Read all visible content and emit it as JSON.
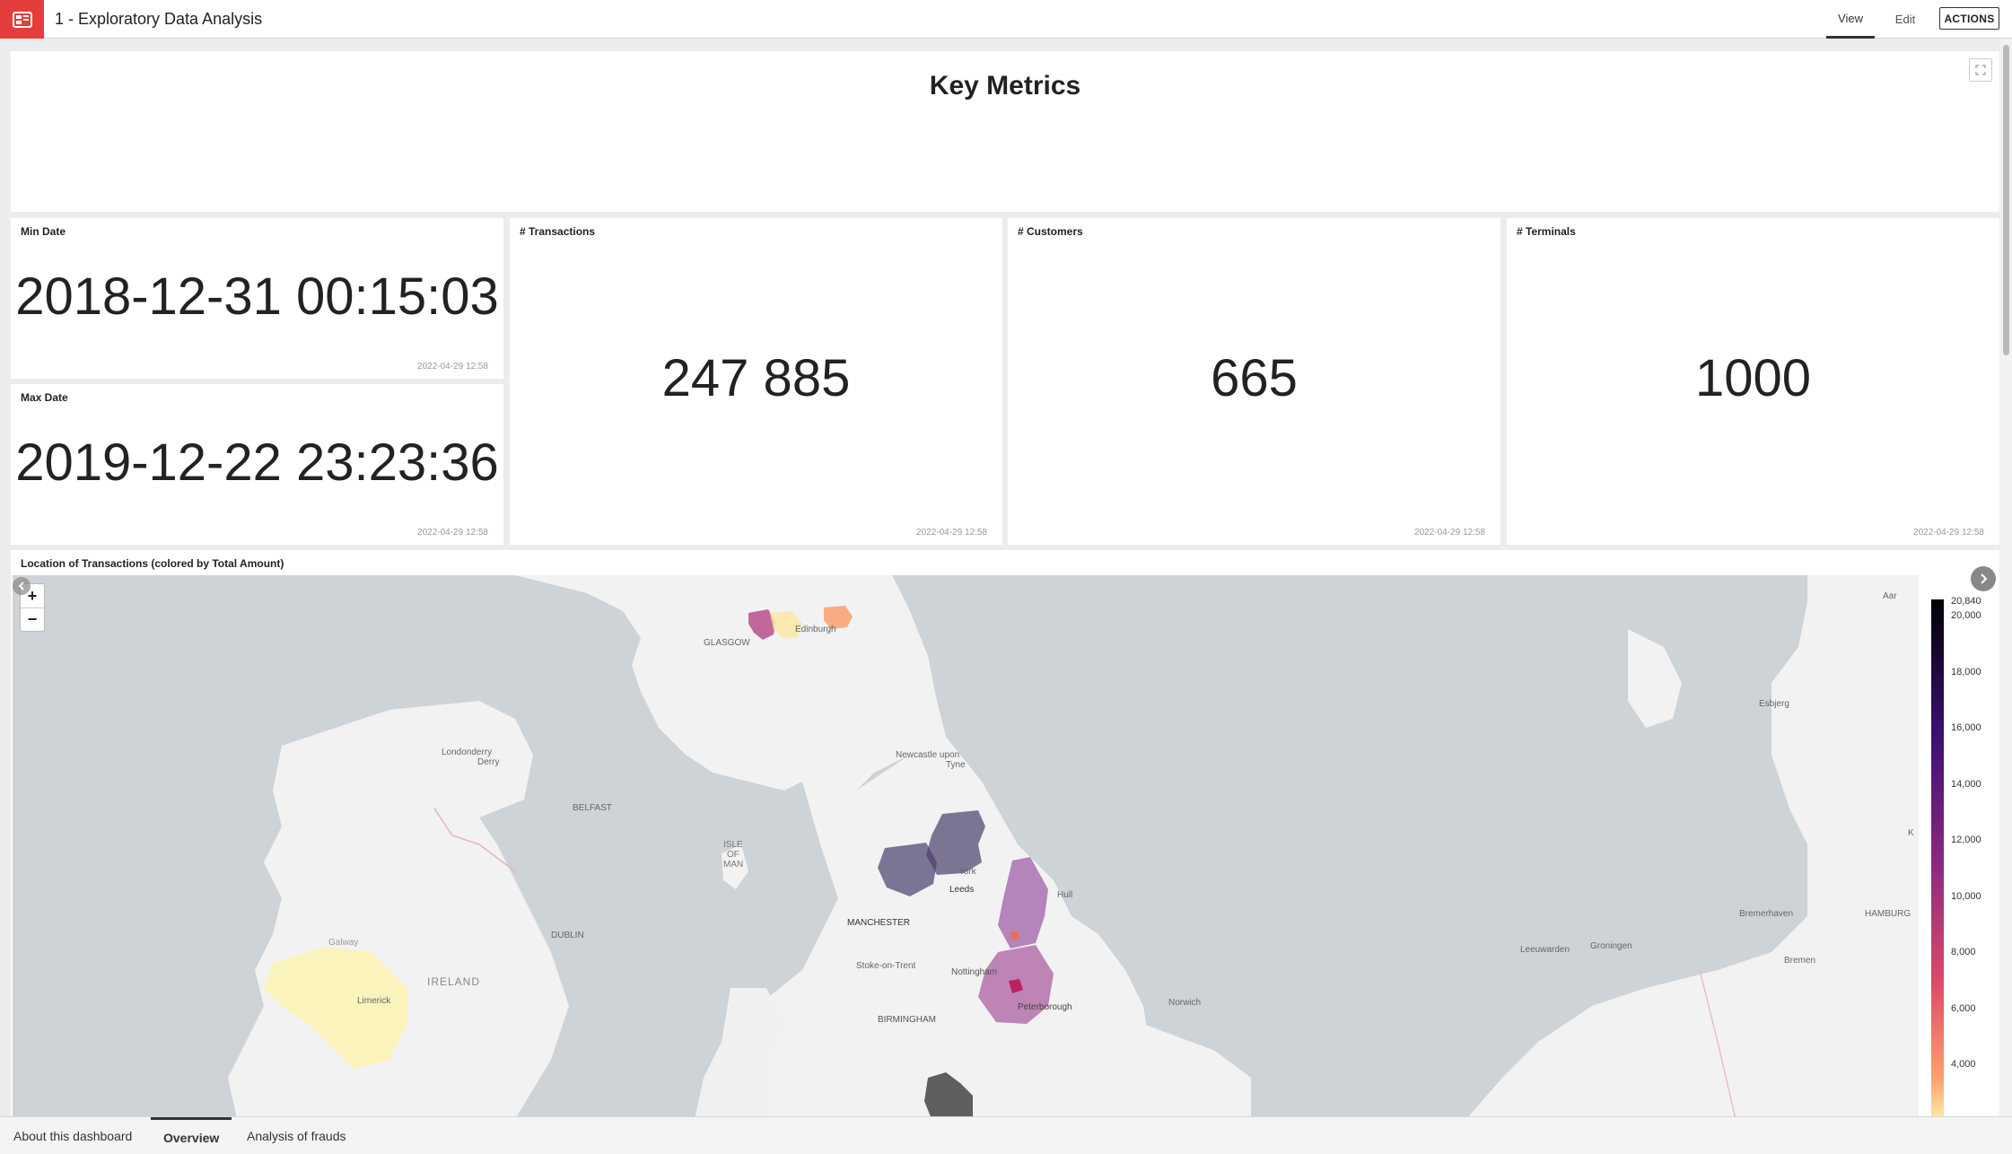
{
  "app": {
    "title": "1 - Exploratory Data Analysis"
  },
  "nav": {
    "view_label": "View",
    "edit_label": "Edit",
    "actions_label": "ACTIONS"
  },
  "key_metrics": {
    "title": "Key Metrics"
  },
  "tiles": {
    "min_date": {
      "title": "Min Date",
      "value": "2018-12-31 00:15:03",
      "updated": "2022-04-29 12:58"
    },
    "max_date": {
      "title": "Max Date",
      "value": "2019-12-22 23:23:36",
      "updated": "2022-04-29 12:58"
    },
    "transactions": {
      "title": "# Transactions",
      "value": "247 885",
      "updated": "2022-04-29 12:58"
    },
    "customers": {
      "title": "# Customers",
      "value": "665",
      "updated": "2022-04-29 12:58"
    },
    "terminals": {
      "title": "# Terminals",
      "value": "1000",
      "updated": "2022-04-29 12:58"
    }
  },
  "map": {
    "title": "Location of Transactions (colored by Total Amount)",
    "zoom_in": "+",
    "zoom_out": "−",
    "places": {
      "glasgow": "GLASGOW",
      "edinburgh": "Edinburgh",
      "londonderry1": "Londonderry",
      "londonderry2": "Derry",
      "belfast": "BELFAST",
      "newcastle1": "Newcastle upon",
      "newcastle2": "Tyne",
      "isle1": "ISLE",
      "isle2": "OF",
      "isle3": "MAN",
      "york": "York",
      "leeds": "Leeds",
      "hull": "Hull",
      "manchester": "MANCHESTER",
      "dublin": "DUBLIN",
      "galway": "Galway",
      "ireland": "IRELAND",
      "stoke": "Stoke-on-Trent",
      "nottingham": "Nottingham",
      "limerick": "Limerick",
      "peterborough": "Peterborough",
      "birmingham": "BIRMINGHAM",
      "norwich": "Norwich",
      "esbjerg": "Esbjerg",
      "bremerhaven": "Bremerhaven",
      "hamburg": "HAMBURG",
      "leeuwarden": "Leeuwarden",
      "groningen": "Groningen",
      "bremen": "Bremen",
      "aar": "Aar",
      "k": "K"
    },
    "legend": {
      "max_label": "20,840",
      "ticks": [
        "20,000",
        "18,000",
        "16,000",
        "14,000",
        "12,000",
        "10,000",
        "8,000",
        "6,000",
        "4,000"
      ],
      "colors": [
        "#000004",
        "#3b0f70",
        "#8c2981",
        "#de4968",
        "#fe9f6d",
        "#fcfdbf"
      ]
    }
  },
  "bottom_tabs": [
    {
      "label": "About this dashboard"
    },
    {
      "label": "Overview"
    },
    {
      "label": "Analysis of frauds"
    }
  ]
}
